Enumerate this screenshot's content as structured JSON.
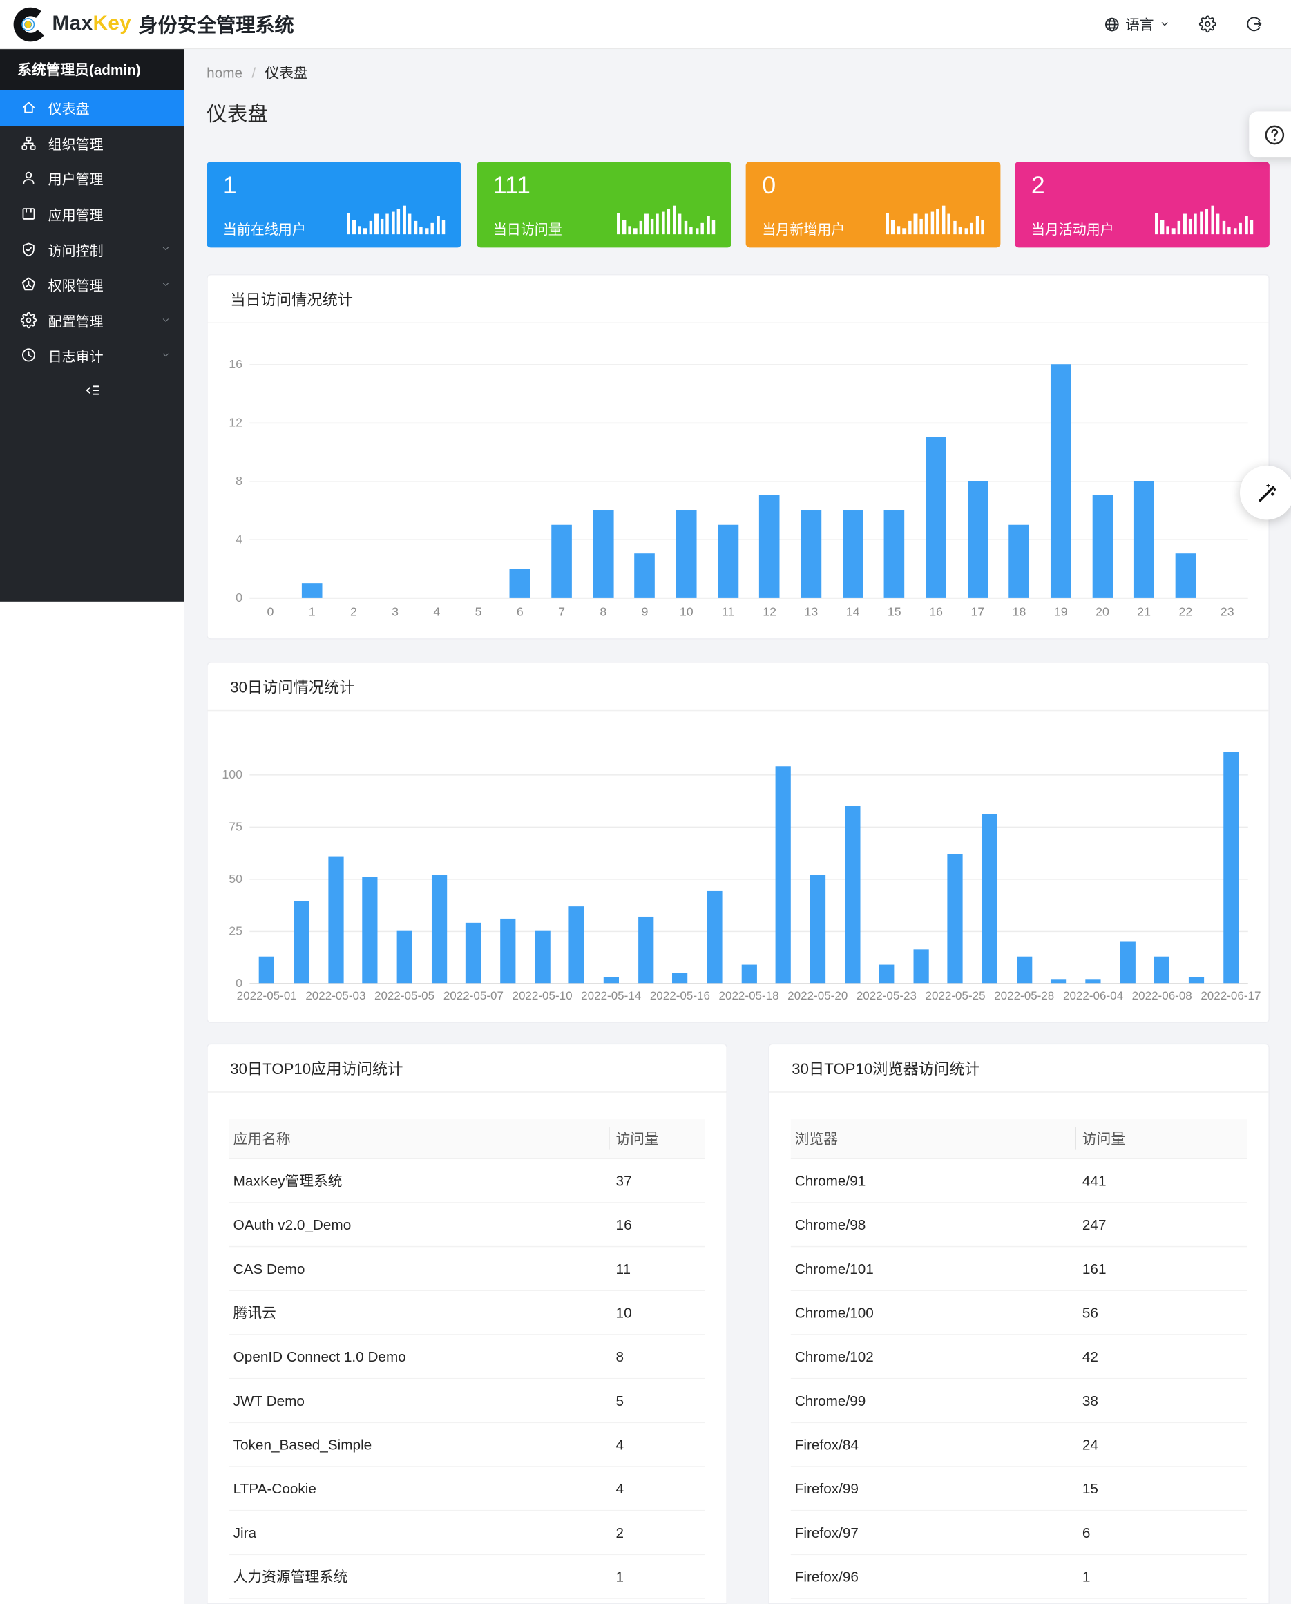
{
  "brand": {
    "logo_icon": "maxkey-logo-icon",
    "name_part1": "Max",
    "name_part2": "Key",
    "product": "身份安全管理系统"
  },
  "header": {
    "language": {
      "icon": "globe-icon",
      "label": "语言",
      "chevron": "chevron-down-icon"
    },
    "settings_icon": "gear-icon",
    "logout_icon": "logout-icon"
  },
  "sidebar": {
    "user_title": "系统管理员(admin)",
    "items": [
      {
        "key": "dashboard",
        "label": "仪表盘",
        "icon": "home-icon",
        "active": true,
        "has_children": false
      },
      {
        "key": "orgs",
        "label": "组织管理",
        "icon": "org-icon",
        "active": false,
        "has_children": false
      },
      {
        "key": "users",
        "label": "用户管理",
        "icon": "user-icon",
        "active": false,
        "has_children": false
      },
      {
        "key": "apps",
        "label": "应用管理",
        "icon": "app-icon",
        "active": false,
        "has_children": false
      },
      {
        "key": "access",
        "label": "访问控制",
        "icon": "shield-check-icon",
        "active": false,
        "has_children": true
      },
      {
        "key": "permissions",
        "label": "权限管理",
        "icon": "permission-icon",
        "active": false,
        "has_children": true
      },
      {
        "key": "config",
        "label": "配置管理",
        "icon": "gear-icon",
        "active": false,
        "has_children": true
      },
      {
        "key": "audit",
        "label": "日志审计",
        "icon": "clock-icon",
        "active": false,
        "has_children": true
      }
    ],
    "collapse_icon": "collapse-menu-icon"
  },
  "breadcrumb": {
    "home": "home",
    "separator": "/",
    "current": "仪表盘"
  },
  "page_title": "仪表盘",
  "stat_cards": [
    {
      "value": "1",
      "label": "当前在线用户",
      "color": "#2095F3",
      "icon": "bar-chart-icon"
    },
    {
      "value": "111",
      "label": "当日访问量",
      "color": "#57C323",
      "icon": "bar-chart-icon"
    },
    {
      "value": "0",
      "label": "当月新增用户",
      "color": "#F69A1E",
      "icon": "bar-chart-icon"
    },
    {
      "value": "2",
      "label": "当月活动用户",
      "color": "#E92C8C",
      "icon": "bar-chart-icon"
    }
  ],
  "sparkline_icon": {
    "name": "bar-chart-icon",
    "heights": [
      21,
      14,
      8,
      6,
      13,
      20,
      15,
      20,
      22,
      25,
      28,
      20,
      13,
      7,
      6,
      11,
      18,
      14
    ]
  },
  "chart_data": [
    {
      "type": "bar",
      "title": "当日访问情况统计",
      "categories": [
        "0",
        "1",
        "2",
        "3",
        "4",
        "5",
        "6",
        "7",
        "8",
        "9",
        "10",
        "11",
        "12",
        "13",
        "14",
        "15",
        "16",
        "17",
        "18",
        "19",
        "20",
        "21",
        "22",
        "23"
      ],
      "values": [
        0,
        1,
        0,
        0,
        0,
        0,
        2,
        5,
        6,
        3,
        6,
        5,
        7,
        6,
        6,
        6,
        11,
        8,
        5,
        16,
        7,
        8,
        3,
        0
      ],
      "xlabel": "",
      "ylabel": "",
      "y_ticks": [
        0,
        4,
        8,
        12,
        16
      ],
      "ylim": [
        0,
        18
      ],
      "grid": true,
      "legend": "none",
      "bar_color": "#3FA1F5"
    },
    {
      "type": "bar",
      "title": "30日访问情况统计",
      "categories": [
        "2022-05-01",
        "",
        "2022-05-03",
        "",
        "2022-05-05",
        "",
        "2022-05-07",
        "",
        "2022-05-10",
        "",
        "2022-05-14",
        "",
        "2022-05-16",
        "",
        "2022-05-18",
        "",
        "2022-05-20",
        "",
        "2022-05-23",
        "",
        "2022-05-25",
        "",
        "2022-05-28",
        "",
        "2022-06-04",
        "",
        "2022-06-08",
        "",
        "2022-06-17"
      ],
      "values": [
        13,
        39,
        61,
        51,
        25,
        52,
        29,
        31,
        25,
        37,
        3,
        32,
        5,
        44,
        9,
        104,
        52,
        85,
        9,
        16,
        62,
        81,
        13,
        2,
        2,
        20,
        13,
        3,
        111
      ],
      "xlabel": "",
      "ylabel": "",
      "y_ticks": [
        0,
        25,
        50,
        75,
        100
      ],
      "ylim": [
        0,
        115
      ],
      "grid": true,
      "legend": "none",
      "bar_color": "#3FA1F5"
    }
  ],
  "tables": [
    {
      "title": "30日TOP10应用访问统计",
      "headers": [
        "应用名称",
        "访问量"
      ],
      "rows": [
        [
          "MaxKey管理系统",
          "37"
        ],
        [
          "OAuth v2.0_Demo",
          "16"
        ],
        [
          "CAS Demo",
          "11"
        ],
        [
          "腾讯云",
          "10"
        ],
        [
          "OpenID Connect 1.0 Demo",
          "8"
        ],
        [
          "JWT Demo",
          "5"
        ],
        [
          "Token_Based_Simple",
          "4"
        ],
        [
          "LTPA-Cookie",
          "4"
        ],
        [
          "Jira",
          "2"
        ],
        [
          "人力资源管理系统",
          "1"
        ]
      ]
    },
    {
      "title": "30日TOP10浏览器访问统计",
      "headers": [
        "浏览器",
        "访问量"
      ],
      "rows": [
        [
          "Chrome/91",
          "441"
        ],
        [
          "Chrome/98",
          "247"
        ],
        [
          "Chrome/101",
          "161"
        ],
        [
          "Chrome/100",
          "56"
        ],
        [
          "Chrome/102",
          "42"
        ],
        [
          "Chrome/99",
          "38"
        ],
        [
          "Firefox/84",
          "24"
        ],
        [
          "Firefox/99",
          "15"
        ],
        [
          "Firefox/97",
          "6"
        ],
        [
          "Firefox/96",
          "1"
        ]
      ]
    }
  ],
  "floating": {
    "help_icon": "help-circle-icon",
    "annotate_icon": "magic-wand-icon"
  },
  "colors": {
    "accent_blue": "#1989F8",
    "bar_blue": "#3FA1F5",
    "sidebar_bg": "#23262B",
    "sidebar_user_bg": "#17191D",
    "page_bg": "#F3F4F7",
    "stat_blue": "#2095F3",
    "stat_green": "#57C323",
    "stat_orange": "#F69A1E",
    "stat_magenta": "#E92C8C"
  }
}
